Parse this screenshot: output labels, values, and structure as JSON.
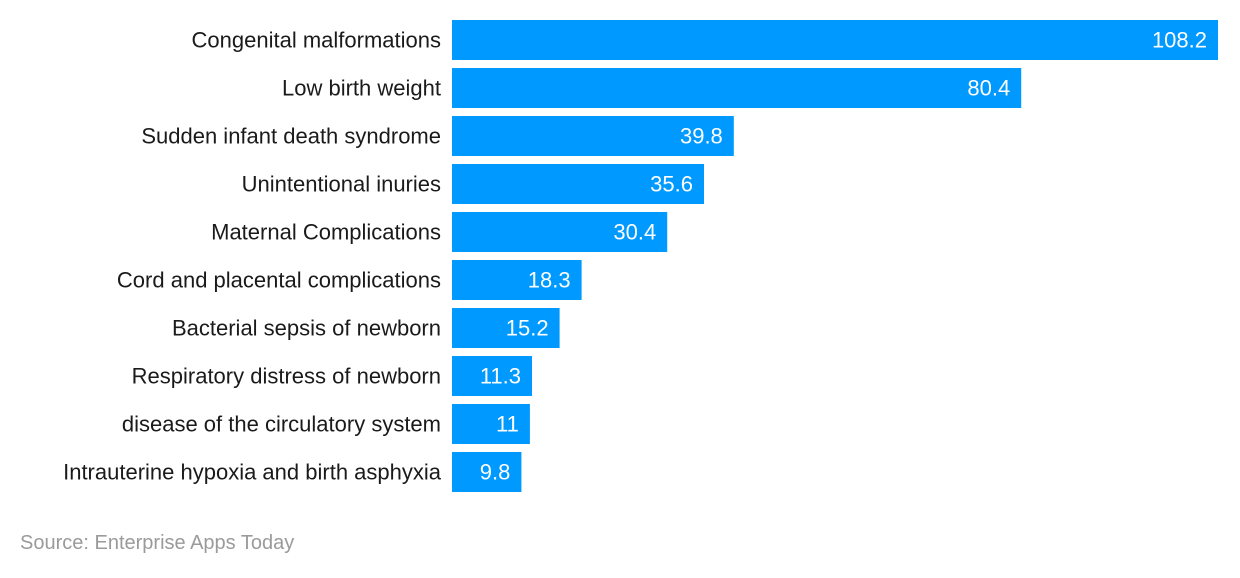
{
  "chart_data": {
    "type": "bar",
    "orientation": "horizontal",
    "categories": [
      "Congenital malformations",
      "Low birth weight",
      "Sudden infant death syndrome",
      "Unintentional inuries",
      "Maternal Complications",
      "Cord and placental complications",
      "Bacterial sepsis of newborn",
      "Respiratory distress of newborn",
      "disease of the circulatory system",
      "Intrauterine hypoxia and birth asphyxia"
    ],
    "values": [
      108.2,
      80.4,
      39.8,
      35.6,
      30.4,
      18.3,
      15.2,
      11.3,
      11,
      9.8
    ],
    "value_labels": [
      "108.2",
      "80.4",
      "39.8",
      "35.6",
      "30.4",
      "18.3",
      "15.2",
      "11.3",
      "11",
      "9.8"
    ],
    "xlim": [
      0,
      108.2
    ],
    "grid": false,
    "legend": "none",
    "bar_color": "#0099ff",
    "value_label_color": "#ffffff",
    "category_label_color": "#1a1a1a"
  },
  "source": {
    "text": "Source: Enterprise Apps Today"
  }
}
